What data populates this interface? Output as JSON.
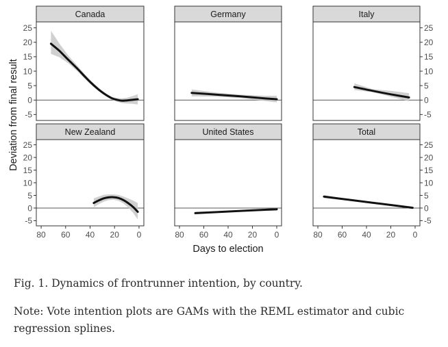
{
  "chart_data": {
    "type": "line",
    "subtype": "faceted GAM smooth with confidence band",
    "ylabel": "Deviation from final result",
    "xlabel": "Days to election",
    "xlim": [
      0,
      80
    ],
    "x_reversed": true,
    "ylim": [
      -5,
      25
    ],
    "x_ticks": [
      80,
      60,
      40,
      20,
      0
    ],
    "y_ticks": [
      -5,
      0,
      5,
      10,
      15,
      20,
      25
    ],
    "reference_line_y": 0,
    "facets": [
      {
        "title": "Canada",
        "x": [
          72,
          65,
          58,
          50,
          44,
          38,
          32,
          27,
          22,
          18,
          14,
          10,
          5,
          1
        ],
        "y": [
          19.5,
          17.0,
          14.0,
          10.7,
          8.0,
          5.5,
          3.3,
          1.8,
          0.6,
          0.1,
          -0.2,
          -0.1,
          0.1,
          0.3
        ],
        "lower": [
          16.0,
          14.8,
          12.8,
          9.8,
          7.2,
          4.8,
          2.8,
          1.3,
          0.1,
          -0.6,
          -1.0,
          -1.2,
          -1.3,
          -1.5
        ],
        "upper": [
          24.0,
          19.5,
          15.5,
          11.7,
          8.8,
          6.2,
          3.9,
          2.3,
          1.1,
          0.7,
          0.6,
          0.8,
          1.4,
          2.0
        ]
      },
      {
        "title": "Germany",
        "x": [
          70,
          50,
          30,
          10,
          0
        ],
        "y": [
          2.5,
          1.9,
          1.3,
          0.6,
          0.3
        ],
        "lower": [
          1.3,
          1.2,
          0.7,
          -0.3,
          -0.8
        ],
        "upper": [
          3.7,
          2.6,
          1.9,
          1.5,
          1.5
        ]
      },
      {
        "title": "Italy",
        "x": [
          50,
          35,
          20,
          5
        ],
        "y": [
          4.5,
          3.2,
          2.0,
          0.9
        ],
        "lower": [
          3.5,
          2.7,
          1.2,
          -0.4
        ],
        "upper": [
          5.8,
          3.8,
          3.2,
          2.4
        ]
      },
      {
        "title": "New Zealand",
        "x": [
          37,
          33,
          29,
          25,
          21,
          17,
          13,
          9,
          5,
          1
        ],
        "y": [
          2.0,
          3.0,
          3.8,
          4.2,
          4.3,
          4.0,
          3.2,
          2.0,
          0.5,
          -1.5
        ],
        "lower": [
          0.3,
          1.5,
          2.5,
          3.1,
          3.3,
          2.9,
          1.9,
          0.3,
          -1.8,
          -4.5
        ],
        "upper": [
          3.8,
          4.5,
          5.2,
          5.4,
          5.4,
          5.2,
          4.6,
          3.8,
          3.0,
          2.0
        ]
      },
      {
        "title": "United States",
        "x": [
          67,
          45,
          25,
          0
        ],
        "y": [
          -2.0,
          -1.5,
          -1.0,
          -0.5
        ],
        "lower": [
          -2.5,
          -1.8,
          -1.3,
          -1.0
        ],
        "upper": [
          -1.5,
          -1.2,
          -0.7,
          0.0
        ]
      },
      {
        "title": "Total",
        "x": [
          75,
          55,
          35,
          15,
          2
        ],
        "y": [
          4.5,
          3.3,
          2.1,
          0.9,
          0.1
        ],
        "lower": [
          3.9,
          3.0,
          1.8,
          0.5,
          -0.4
        ],
        "upper": [
          5.1,
          3.6,
          2.4,
          1.3,
          0.6
        ]
      }
    ]
  },
  "caption": "Fig. 1. Dynamics of frontrunner intention, by country.",
  "note": "Note: Vote intention plots are GAMs with the REML estimator and cubic regression splines.",
  "colors": {
    "strip_fill": "#d9d9d9",
    "band_fill": "#c8c8c8",
    "line": "#111111",
    "axis_text": "#4d4d4d",
    "panel_border": "#333333"
  }
}
